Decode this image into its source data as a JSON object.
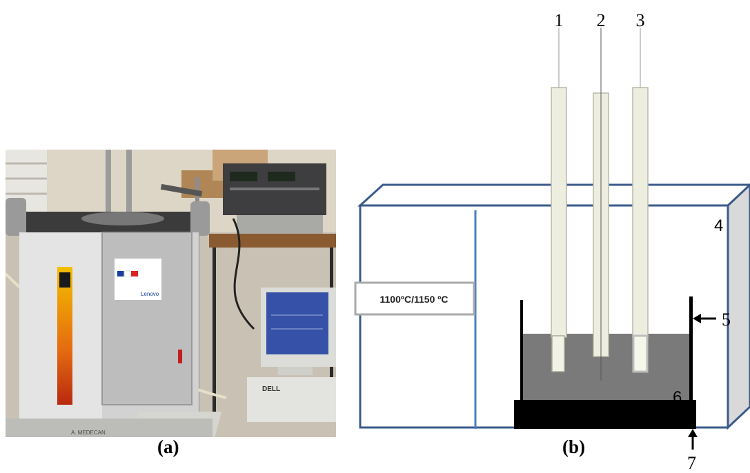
{
  "panel_a": {
    "caption": "(a)",
    "photo_text": {
      "sticker_brand": "Lenovo",
      "monitor_brand": "DELL",
      "label_strip": "A. MEDECAN"
    }
  },
  "panel_b": {
    "caption": "(b)",
    "temperature_label": "1100ºC/1150 ºC",
    "labels": [
      "1",
      "2",
      "3",
      "4",
      "5",
      "6",
      "7"
    ],
    "colors": {
      "furnace_outline": "#3a5a8c",
      "divider": "#4a7fc1",
      "melt": "#7a7a7a",
      "crucible": "#000000",
      "tube": "#eeeee0",
      "furnace_side": "#d9d9d9"
    }
  }
}
